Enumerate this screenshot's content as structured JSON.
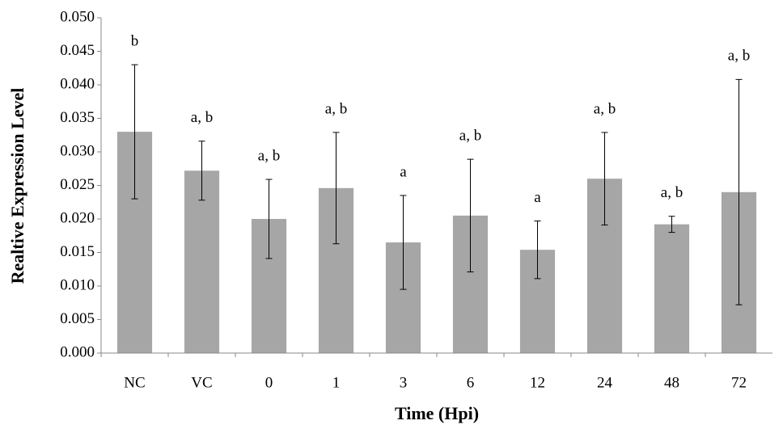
{
  "chart_data": {
    "type": "bar",
    "xlabel": "Time (Hpi)",
    "ylabel": "Realtive Expression Level",
    "categories": [
      "NC",
      "VC",
      "0",
      "1",
      "3",
      "6",
      "12",
      "24",
      "48",
      "72"
    ],
    "values": [
      0.033,
      0.0272,
      0.02,
      0.0246,
      0.0165,
      0.0205,
      0.0154,
      0.026,
      0.0192,
      0.024
    ],
    "errors": [
      0.01,
      0.0044,
      0.0059,
      0.0083,
      0.007,
      0.0084,
      0.0043,
      0.0069,
      0.0012,
      0.0168
    ],
    "annotations": [
      "b",
      "a, b",
      "a, b",
      "a, b",
      "a",
      "a, b",
      "a",
      "a, b",
      "a, b",
      "a, b"
    ],
    "color": "#a6a6a6",
    "ylim": [
      0,
      0.05
    ],
    "yticks": [
      {
        "value": 0,
        "label": "0.000"
      },
      {
        "value": 0.005,
        "label": "0.005"
      },
      {
        "value": 0.01,
        "label": "0.010"
      },
      {
        "value": 0.015,
        "label": "0.015"
      },
      {
        "value": 0.02,
        "label": "0.020"
      },
      {
        "value": 0.025,
        "label": "0.025"
      },
      {
        "value": 0.03,
        "label": "0.030"
      },
      {
        "value": 0.035,
        "label": "0.035"
      },
      {
        "value": 0.04,
        "label": "0.040"
      },
      {
        "value": 0.045,
        "label": "0.045"
      },
      {
        "value": 0.05,
        "label": "0.050"
      }
    ],
    "grid": false
  }
}
